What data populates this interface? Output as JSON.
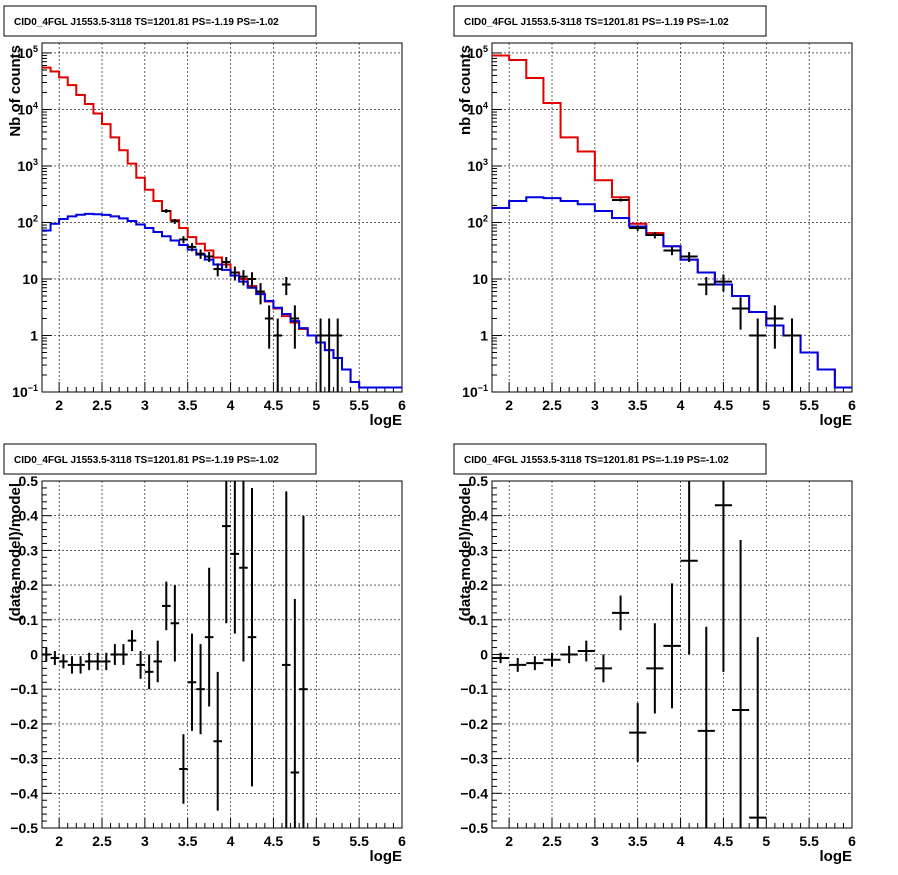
{
  "chart_data": [
    {
      "type": "step-histogram",
      "panel": "top-left",
      "title": "CID0_4FGL J1553.5-3118 TS=1201.81 PS=-1.19 PS=-1.02",
      "xlabel": "logE",
      "ylabel": "Nb of counts",
      "xlim": [
        1.8,
        6.0
      ],
      "ylim": [
        0.1,
        150000
      ],
      "log_y": true,
      "grid": true,
      "x_ticks": [
        "2",
        "2.5",
        "3",
        "3.5",
        "4",
        "4.5",
        "5",
        "5.5",
        "6"
      ],
      "series": [
        {
          "color": "#e00000",
          "bin_width": 0.1,
          "x": [
            1.8,
            1.9,
            2.0,
            2.1,
            2.2,
            2.3,
            2.4,
            2.5,
            2.6,
            2.7,
            2.8,
            2.9,
            3.0,
            3.1,
            3.2,
            3.3,
            3.4,
            3.5,
            3.6,
            3.7,
            3.8,
            3.9,
            4.0,
            4.1,
            4.2,
            4.3,
            4.4,
            4.5,
            4.6,
            4.7,
            4.8,
            4.9,
            5.0,
            5.1,
            5.2,
            5.3,
            5.4,
            5.5,
            5.6,
            5.7,
            5.8,
            5.9
          ],
          "values": [
            55000,
            47000,
            37000,
            27000,
            18000,
            12500,
            8500,
            5500,
            3200,
            1900,
            1100,
            620,
            380,
            240,
            160,
            110,
            80,
            55,
            42,
            32,
            24,
            18,
            13,
            10,
            7.5,
            5.5,
            4,
            3,
            2.2,
            1.7,
            1.3,
            1.0,
            0.75,
            0.55,
            0.4,
            0.25,
            0.15,
            0.12,
            0.12,
            0.12,
            0.12,
            0.12
          ]
        },
        {
          "color": "#0000e0",
          "bin_width": 0.1,
          "x": [
            1.8,
            1.9,
            2.0,
            2.1,
            2.2,
            2.3,
            2.4,
            2.5,
            2.6,
            2.7,
            2.8,
            2.9,
            3.0,
            3.1,
            3.2,
            3.3,
            3.4,
            3.5,
            3.6,
            3.7,
            3.8,
            3.9,
            4.0,
            4.1,
            4.2,
            4.3,
            4.4,
            4.5,
            4.6,
            4.7,
            4.8,
            4.9,
            5.0,
            5.1,
            5.2,
            5.3,
            5.4,
            5.5,
            5.6,
            5.7,
            5.8,
            5.9
          ],
          "values": [
            72,
            95,
            115,
            128,
            137,
            142,
            140,
            136,
            128,
            118,
            106,
            92,
            80,
            68,
            57,
            48,
            40,
            33,
            27,
            22,
            18,
            14.5,
            11.5,
            9,
            7,
            5.4,
            4.1,
            3.1,
            2.4,
            1.8,
            1.35,
            1.0,
            0.75,
            0.55,
            0.4,
            0.25,
            0.15,
            0.12,
            0.12,
            0.12,
            0.12,
            0.12
          ]
        }
      ],
      "points": [
        {
          "x": 3.25,
          "y": 160
        },
        {
          "x": 3.35,
          "y": 105
        },
        {
          "x": 3.45,
          "y": 50
        },
        {
          "x": 3.55,
          "y": 37
        },
        {
          "x": 3.65,
          "y": 28
        },
        {
          "x": 3.75,
          "y": 25
        },
        {
          "x": 3.85,
          "y": 15
        },
        {
          "x": 3.95,
          "y": 20
        },
        {
          "x": 4.05,
          "y": 13
        },
        {
          "x": 4.15,
          "y": 11
        },
        {
          "x": 4.25,
          "y": 10
        },
        {
          "x": 4.35,
          "y": 6
        },
        {
          "x": 4.45,
          "y": 2
        },
        {
          "x": 4.55,
          "y": 1
        },
        {
          "x": 4.65,
          "y": 8
        },
        {
          "x": 4.75,
          "y": 2
        },
        {
          "x": 5.05,
          "y": 1
        },
        {
          "x": 5.15,
          "y": 1
        },
        {
          "x": 5.25,
          "y": 1
        }
      ]
    },
    {
      "type": "step-histogram",
      "panel": "top-right",
      "title": "CID0_4FGL J1553.5-3118 TS=1201.81 PS=-1.19 PS=-1.02",
      "xlabel": "logE",
      "ylabel": "nb of counts",
      "xlim": [
        1.8,
        6.0
      ],
      "ylim": [
        0.1,
        150000
      ],
      "log_y": true,
      "grid": true,
      "x_ticks": [
        "2",
        "2.5",
        "3",
        "3.5",
        "4",
        "4.5",
        "5",
        "5.5",
        "6"
      ],
      "series": [
        {
          "color": "#e00000",
          "bin_width": 0.2,
          "x": [
            1.8,
            2.0,
            2.2,
            2.4,
            2.6,
            2.8,
            3.0,
            3.2,
            3.4,
            3.6,
            3.8,
            4.0,
            4.2,
            4.4,
            4.6,
            4.8,
            5.0,
            5.2,
            5.4,
            5.6,
            5.8
          ],
          "values": [
            90000,
            75000,
            36000,
            13000,
            3200,
            1800,
            560,
            280,
            95,
            65,
            38,
            22,
            13,
            8,
            5,
            2.6,
            1.5,
            1.0,
            0.5,
            0.25,
            0.12
          ]
        },
        {
          "color": "#0000e0",
          "bin_width": 0.2,
          "x": [
            1.8,
            2.0,
            2.2,
            2.4,
            2.6,
            2.8,
            3.0,
            3.2,
            3.4,
            3.6,
            3.8,
            4.0,
            4.2,
            4.4,
            4.6,
            4.8,
            5.0,
            5.2,
            5.4,
            5.6,
            5.8
          ],
          "values": [
            180,
            240,
            280,
            270,
            240,
            210,
            160,
            120,
            85,
            60,
            38,
            22,
            13,
            8,
            5,
            2.6,
            1.5,
            1.0,
            0.5,
            0.25,
            0.12
          ]
        }
      ],
      "points": [
        {
          "x": 3.3,
          "y": 250
        },
        {
          "x": 3.5,
          "y": 80
        },
        {
          "x": 3.7,
          "y": 60
        },
        {
          "x": 3.9,
          "y": 32
        },
        {
          "x": 4.1,
          "y": 25
        },
        {
          "x": 4.3,
          "y": 8
        },
        {
          "x": 4.5,
          "y": 9
        },
        {
          "x": 4.7,
          "y": 3
        },
        {
          "x": 4.9,
          "y": 1
        },
        {
          "x": 5.1,
          "y": 2
        },
        {
          "x": 5.3,
          "y": 1
        }
      ]
    },
    {
      "type": "scatter",
      "panel": "bottom-left",
      "title": "CID0_4FGL J1553.5-3118 TS=1201.81 PS=-1.19 PS=-1.02",
      "xlabel": "logE",
      "ylabel": "(data-model)/model",
      "xlim": [
        1.8,
        6.0
      ],
      "ylim": [
        -0.5,
        0.5
      ],
      "grid": true,
      "x_ticks": [
        "2",
        "2.5",
        "3",
        "3.5",
        "4",
        "4.5",
        "5",
        "5.5",
        "6"
      ],
      "y_ticks": [
        "−0.5",
        "−0.4",
        "−0.3",
        "−0.2",
        "−0.1",
        "0",
        "0.1",
        "0.2",
        "0.3",
        "0.4",
        "0.5"
      ],
      "points": [
        {
          "x": 1.85,
          "y": 0.0,
          "err": 0.02
        },
        {
          "x": 1.95,
          "y": -0.01,
          "err": 0.02
        },
        {
          "x": 2.05,
          "y": -0.02,
          "err": 0.02
        },
        {
          "x": 2.15,
          "y": -0.03,
          "err": 0.025
        },
        {
          "x": 2.25,
          "y": -0.03,
          "err": 0.025
        },
        {
          "x": 2.35,
          "y": -0.02,
          "err": 0.025
        },
        {
          "x": 2.45,
          "y": -0.02,
          "err": 0.025
        },
        {
          "x": 2.55,
          "y": -0.02,
          "err": 0.025
        },
        {
          "x": 2.65,
          "y": 0.0,
          "err": 0.03
        },
        {
          "x": 2.75,
          "y": 0.0,
          "err": 0.03
        },
        {
          "x": 2.85,
          "y": 0.04,
          "err": 0.03
        },
        {
          "x": 2.95,
          "y": -0.03,
          "err": 0.04
        },
        {
          "x": 3.05,
          "y": -0.05,
          "err": 0.05
        },
        {
          "x": 3.15,
          "y": -0.02,
          "err": 0.06
        },
        {
          "x": 3.25,
          "y": 0.14,
          "err": 0.07
        },
        {
          "x": 3.35,
          "y": 0.09,
          "err": 0.11
        },
        {
          "x": 3.45,
          "y": -0.33,
          "err": 0.1
        },
        {
          "x": 3.55,
          "y": -0.08,
          "err": 0.14
        },
        {
          "x": 3.65,
          "y": -0.1,
          "err": 0.13
        },
        {
          "x": 3.75,
          "y": 0.05,
          "err": 0.2
        },
        {
          "x": 3.85,
          "y": -0.25,
          "err": 0.2
        },
        {
          "x": 3.95,
          "y": 0.37,
          "err": 0.28
        },
        {
          "x": 4.05,
          "y": 0.29,
          "err": 0.23
        },
        {
          "x": 4.15,
          "y": 0.25,
          "err": 0.27
        },
        {
          "x": 4.25,
          "y": 0.05,
          "err": 0.43
        },
        {
          "x": 4.65,
          "y": -0.03,
          "err": 0.5
        },
        {
          "x": 4.75,
          "y": -0.34,
          "err": 0.5
        },
        {
          "x": 4.85,
          "y": -0.1,
          "err": 0.5
        }
      ]
    },
    {
      "type": "scatter",
      "panel": "bottom-right",
      "title": "CID0_4FGL J1553.5-3118 TS=1201.81 PS=-1.19 PS=-1.02",
      "xlabel": "logE",
      "ylabel": "(data-model)/model",
      "xlim": [
        1.8,
        6.0
      ],
      "ylim": [
        -0.5,
        0.5
      ],
      "grid": true,
      "x_ticks": [
        "2",
        "2.5",
        "3",
        "3.5",
        "4",
        "4.5",
        "5",
        "5.5",
        "6"
      ],
      "y_ticks": [
        "−0.5",
        "−0.4",
        "−0.3",
        "−0.2",
        "−0.1",
        "0",
        "0.1",
        "0.2",
        "0.3",
        "0.4",
        "0.5"
      ],
      "points": [
        {
          "x": 1.9,
          "y": -0.01,
          "err": 0.015
        },
        {
          "x": 2.1,
          "y": -0.03,
          "err": 0.02
        },
        {
          "x": 2.3,
          "y": -0.025,
          "err": 0.02
        },
        {
          "x": 2.5,
          "y": -0.015,
          "err": 0.02
        },
        {
          "x": 2.7,
          "y": 0.0,
          "err": 0.025
        },
        {
          "x": 2.9,
          "y": 0.01,
          "err": 0.03
        },
        {
          "x": 3.1,
          "y": -0.04,
          "err": 0.04
        },
        {
          "x": 3.3,
          "y": 0.12,
          "err": 0.05
        },
        {
          "x": 3.5,
          "y": -0.225,
          "err": 0.085
        },
        {
          "x": 3.7,
          "y": -0.04,
          "err": 0.13
        },
        {
          "x": 3.9,
          "y": 0.025,
          "err": 0.18
        },
        {
          "x": 4.1,
          "y": 0.27,
          "err": 0.27
        },
        {
          "x": 4.3,
          "y": -0.22,
          "err": 0.3
        },
        {
          "x": 4.5,
          "y": 0.43,
          "err": 0.48
        },
        {
          "x": 4.7,
          "y": -0.16,
          "err": 0.49
        },
        {
          "x": 4.9,
          "y": -0.47,
          "err": 0.52
        }
      ]
    }
  ]
}
